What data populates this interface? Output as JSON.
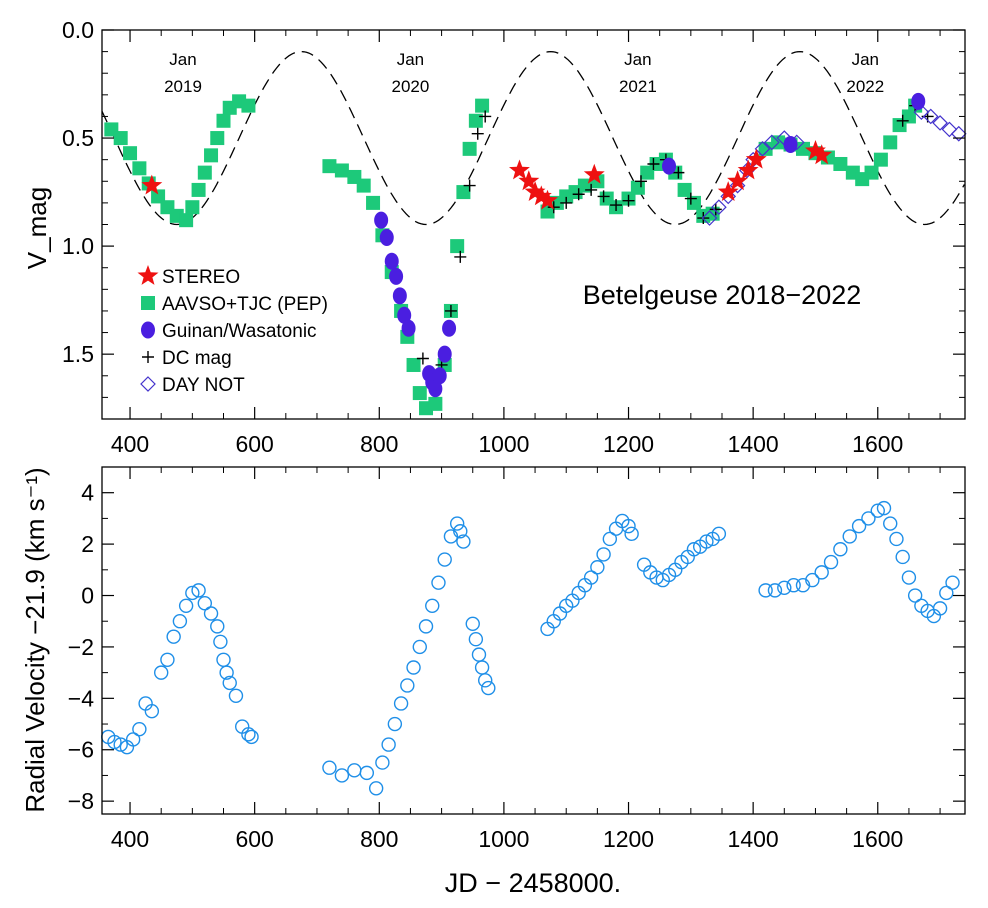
{
  "figure_title": "Betelgeuse 2018−2022",
  "chart_data": [
    {
      "type": "scatter",
      "title": "Betelgeuse 2018−2022",
      "xlabel": "",
      "ylabel": "V_mag",
      "xlim": [
        355,
        1740
      ],
      "ylim": [
        0.0,
        1.8
      ],
      "y_inverted": true,
      "x_ticks": [
        400,
        600,
        800,
        1000,
        1200,
        1400,
        1600
      ],
      "y_ticks": [
        0.0,
        0.5,
        1.0,
        1.5
      ],
      "y_tick_labels": [
        "0.0",
        "0.5",
        "1.0",
        "1.5"
      ],
      "date_markers": [
        {
          "x": 485,
          "line1": "Jan",
          "line2": "2019"
        },
        {
          "x": 850,
          "line1": "Jan",
          "line2": "2020"
        },
        {
          "x": 1215,
          "line1": "Jan",
          "line2": "2021"
        },
        {
          "x": 1580,
          "line1": "Jan",
          "line2": "2022"
        }
      ],
      "model_curve": {
        "style": "dashed",
        "mean": 0.5,
        "amplitude": 0.4,
        "period": 400,
        "min_at": 675
      },
      "series": [
        {
          "name": "STEREO",
          "marker": "star",
          "color": "#ee1111",
          "points": [
            [
              435,
              0.72
            ],
            [
              1025,
              0.65
            ],
            [
              1040,
              0.7
            ],
            [
              1050,
              0.75
            ],
            [
              1060,
              0.77
            ],
            [
              1070,
              0.79
            ],
            [
              1145,
              0.67
            ],
            [
              1360,
              0.75
            ],
            [
              1375,
              0.7
            ],
            [
              1392,
              0.65
            ],
            [
              1405,
              0.6
            ],
            [
              1500,
              0.56
            ],
            [
              1510,
              0.58
            ]
          ]
        },
        {
          "name": "AAVSO+TJC (PEP)",
          "marker": "square",
          "color": "#1dc97a",
          "points": [
            [
              370,
              0.46
            ],
            [
              385,
              0.5
            ],
            [
              400,
              0.57
            ],
            [
              415,
              0.64
            ],
            [
              430,
              0.71
            ],
            [
              445,
              0.77
            ],
            [
              460,
              0.82
            ],
            [
              475,
              0.86
            ],
            [
              490,
              0.88
            ],
            [
              500,
              0.82
            ],
            [
              510,
              0.74
            ],
            [
              520,
              0.66
            ],
            [
              530,
              0.58
            ],
            [
              540,
              0.5
            ],
            [
              550,
              0.42
            ],
            [
              560,
              0.36
            ],
            [
              575,
              0.33
            ],
            [
              590,
              0.35
            ],
            [
              720,
              0.63
            ],
            [
              740,
              0.65
            ],
            [
              760,
              0.68
            ],
            [
              775,
              0.72
            ],
            [
              790,
              0.8
            ],
            [
              805,
              0.95
            ],
            [
              820,
              1.12
            ],
            [
              835,
              1.3
            ],
            [
              845,
              1.42
            ],
            [
              855,
              1.55
            ],
            [
              865,
              1.68
            ],
            [
              875,
              1.75
            ],
            [
              890,
              1.73
            ],
            [
              905,
              1.55
            ],
            [
              915,
              1.3
            ],
            [
              925,
              1.0
            ],
            [
              935,
              0.75
            ],
            [
              945,
              0.55
            ],
            [
              955,
              0.42
            ],
            [
              965,
              0.35
            ],
            [
              1070,
              0.84
            ],
            [
              1085,
              0.8
            ],
            [
              1100,
              0.77
            ],
            [
              1115,
              0.75
            ],
            [
              1130,
              0.72
            ],
            [
              1150,
              0.7
            ],
            [
              1165,
              0.78
            ],
            [
              1180,
              0.82
            ],
            [
              1200,
              0.78
            ],
            [
              1215,
              0.73
            ],
            [
              1230,
              0.66
            ],
            [
              1245,
              0.62
            ],
            [
              1260,
              0.6
            ],
            [
              1275,
              0.66
            ],
            [
              1290,
              0.74
            ],
            [
              1305,
              0.8
            ],
            [
              1320,
              0.86
            ],
            [
              1335,
              0.85
            ],
            [
              1420,
              0.55
            ],
            [
              1440,
              0.52
            ],
            [
              1460,
              0.53
            ],
            [
              1480,
              0.55
            ],
            [
              1500,
              0.57
            ],
            [
              1520,
              0.59
            ],
            [
              1540,
              0.62
            ],
            [
              1560,
              0.66
            ],
            [
              1575,
              0.69
            ],
            [
              1590,
              0.66
            ],
            [
              1605,
              0.6
            ],
            [
              1620,
              0.52
            ],
            [
              1635,
              0.44
            ],
            [
              1650,
              0.4
            ],
            [
              1660,
              0.35
            ]
          ]
        },
        {
          "name": "Guinan/Wasatonic",
          "marker": "circle",
          "color": "#4a1ee0",
          "points": [
            [
              803,
              0.88
            ],
            [
              812,
              0.96
            ],
            [
              820,
              1.07
            ],
            [
              827,
              1.14
            ],
            [
              833,
              1.23
            ],
            [
              840,
              1.32
            ],
            [
              847,
              1.38
            ],
            [
              880,
              1.59
            ],
            [
              885,
              1.63
            ],
            [
              890,
              1.66
            ],
            [
              897,
              1.6
            ],
            [
              905,
              1.5
            ],
            [
              912,
              1.38
            ],
            [
              1265,
              0.63
            ],
            [
              1460,
              0.53
            ],
            [
              1665,
              0.33
            ]
          ]
        },
        {
          "name": "DC mag",
          "marker": "plus",
          "color": "#000000",
          "points": [
            [
              870,
              1.52
            ],
            [
              880,
              1.58
            ],
            [
              890,
              1.6
            ],
            [
              900,
              1.55
            ],
            [
              915,
              1.3
            ],
            [
              930,
              1.05
            ],
            [
              945,
              0.72
            ],
            [
              958,
              0.48
            ],
            [
              970,
              0.4
            ],
            [
              1080,
              0.82
            ],
            [
              1100,
              0.8
            ],
            [
              1120,
              0.76
            ],
            [
              1140,
              0.74
            ],
            [
              1160,
              0.77
            ],
            [
              1180,
              0.81
            ],
            [
              1200,
              0.79
            ],
            [
              1220,
              0.7
            ],
            [
              1240,
              0.62
            ],
            [
              1260,
              0.6
            ],
            [
              1280,
              0.66
            ],
            [
              1300,
              0.78
            ],
            [
              1320,
              0.87
            ],
            [
              1340,
              0.83
            ],
            [
              1640,
              0.42
            ],
            [
              1660,
              0.35
            ],
            [
              1680,
              0.4
            ]
          ]
        },
        {
          "name": "DAY NOT",
          "marker": "diamond",
          "color": "#4433cc",
          "points": [
            [
              1330,
              0.87
            ],
            [
              1345,
              0.82
            ],
            [
              1360,
              0.77
            ],
            [
              1375,
              0.72
            ],
            [
              1390,
              0.65
            ],
            [
              1400,
              0.6
            ],
            [
              1415,
              0.55
            ],
            [
              1430,
              0.52
            ],
            [
              1450,
              0.5
            ],
            [
              1470,
              0.52
            ],
            [
              1670,
              0.38
            ],
            [
              1685,
              0.4
            ],
            [
              1700,
              0.43
            ],
            [
              1715,
              0.46
            ],
            [
              1730,
              0.48
            ]
          ]
        }
      ]
    },
    {
      "type": "scatter",
      "title": "",
      "xlabel": "JD − 2458000.",
      "ylabel": "Radial Velocity −21.9 (km s⁻¹)",
      "xlim": [
        355,
        1740
      ],
      "ylim": [
        -8.5,
        5.0
      ],
      "x_ticks": [
        400,
        600,
        800,
        1000,
        1200,
        1400,
        1600
      ],
      "y_ticks": [
        4,
        2,
        0,
        -2,
        -4,
        -6,
        -8
      ],
      "y_tick_labels": [
        "4",
        "2",
        "0",
        "−2",
        "−4",
        "−6",
        "−8"
      ],
      "series": [
        {
          "marker": "open-circle",
          "color": "#1f8fe8",
          "points": [
            [
              365,
              -5.5
            ],
            [
              375,
              -5.7
            ],
            [
              385,
              -5.8
            ],
            [
              395,
              -5.9
            ],
            [
              405,
              -5.6
            ],
            [
              415,
              -5.2
            ],
            [
              425,
              -4.2
            ],
            [
              435,
              -4.5
            ],
            [
              450,
              -3.0
            ],
            [
              460,
              -2.5
            ],
            [
              470,
              -1.6
            ],
            [
              480,
              -1.0
            ],
            [
              490,
              -0.4
            ],
            [
              500,
              0.1
            ],
            [
              510,
              0.2
            ],
            [
              520,
              -0.3
            ],
            [
              530,
              -0.7
            ],
            [
              540,
              -1.2
            ],
            [
              545,
              -1.8
            ],
            [
              550,
              -2.5
            ],
            [
              555,
              -3.0
            ],
            [
              560,
              -3.4
            ],
            [
              570,
              -3.9
            ],
            [
              580,
              -5.1
            ],
            [
              590,
              -5.4
            ],
            [
              595,
              -5.5
            ],
            [
              720,
              -6.7
            ],
            [
              740,
              -7.0
            ],
            [
              760,
              -6.8
            ],
            [
              780,
              -6.9
            ],
            [
              795,
              -7.5
            ],
            [
              805,
              -6.5
            ],
            [
              815,
              -5.8
            ],
            [
              825,
              -5.0
            ],
            [
              835,
              -4.2
            ],
            [
              845,
              -3.5
            ],
            [
              855,
              -2.8
            ],
            [
              865,
              -2.0
            ],
            [
              875,
              -1.2
            ],
            [
              885,
              -0.4
            ],
            [
              895,
              0.5
            ],
            [
              905,
              1.4
            ],
            [
              915,
              2.3
            ],
            [
              925,
              2.8
            ],
            [
              930,
              2.5
            ],
            [
              935,
              2.1
            ],
            [
              950,
              -1.1
            ],
            [
              955,
              -1.7
            ],
            [
              960,
              -2.3
            ],
            [
              965,
              -2.8
            ],
            [
              970,
              -3.3
            ],
            [
              975,
              -3.6
            ],
            [
              1070,
              -1.3
            ],
            [
              1080,
              -1.0
            ],
            [
              1090,
              -0.7
            ],
            [
              1100,
              -0.4
            ],
            [
              1110,
              -0.2
            ],
            [
              1120,
              0.1
            ],
            [
              1130,
              0.4
            ],
            [
              1140,
              0.7
            ],
            [
              1150,
              1.1
            ],
            [
              1160,
              1.6
            ],
            [
              1170,
              2.2
            ],
            [
              1180,
              2.6
            ],
            [
              1190,
              2.9
            ],
            [
              1200,
              2.7
            ],
            [
              1205,
              2.4
            ],
            [
              1225,
              1.2
            ],
            [
              1235,
              0.9
            ],
            [
              1245,
              0.7
            ],
            [
              1255,
              0.6
            ],
            [
              1265,
              0.8
            ],
            [
              1275,
              1.0
            ],
            [
              1285,
              1.3
            ],
            [
              1295,
              1.5
            ],
            [
              1305,
              1.8
            ],
            [
              1315,
              1.9
            ],
            [
              1325,
              2.1
            ],
            [
              1335,
              2.2
            ],
            [
              1345,
              2.4
            ],
            [
              1420,
              0.2
            ],
            [
              1435,
              0.2
            ],
            [
              1450,
              0.3
            ],
            [
              1465,
              0.4
            ],
            [
              1480,
              0.4
            ],
            [
              1495,
              0.6
            ],
            [
              1510,
              0.9
            ],
            [
              1525,
              1.3
            ],
            [
              1540,
              1.8
            ],
            [
              1555,
              2.3
            ],
            [
              1570,
              2.7
            ],
            [
              1585,
              3.0
            ],
            [
              1600,
              3.3
            ],
            [
              1610,
              3.4
            ],
            [
              1620,
              2.8
            ],
            [
              1630,
              2.2
            ],
            [
              1640,
              1.5
            ],
            [
              1650,
              0.7
            ],
            [
              1660,
              0.0
            ],
            [
              1670,
              -0.4
            ],
            [
              1680,
              -0.6
            ],
            [
              1690,
              -0.8
            ],
            [
              1700,
              -0.5
            ],
            [
              1710,
              0.1
            ],
            [
              1720,
              0.5
            ]
          ]
        }
      ]
    }
  ]
}
